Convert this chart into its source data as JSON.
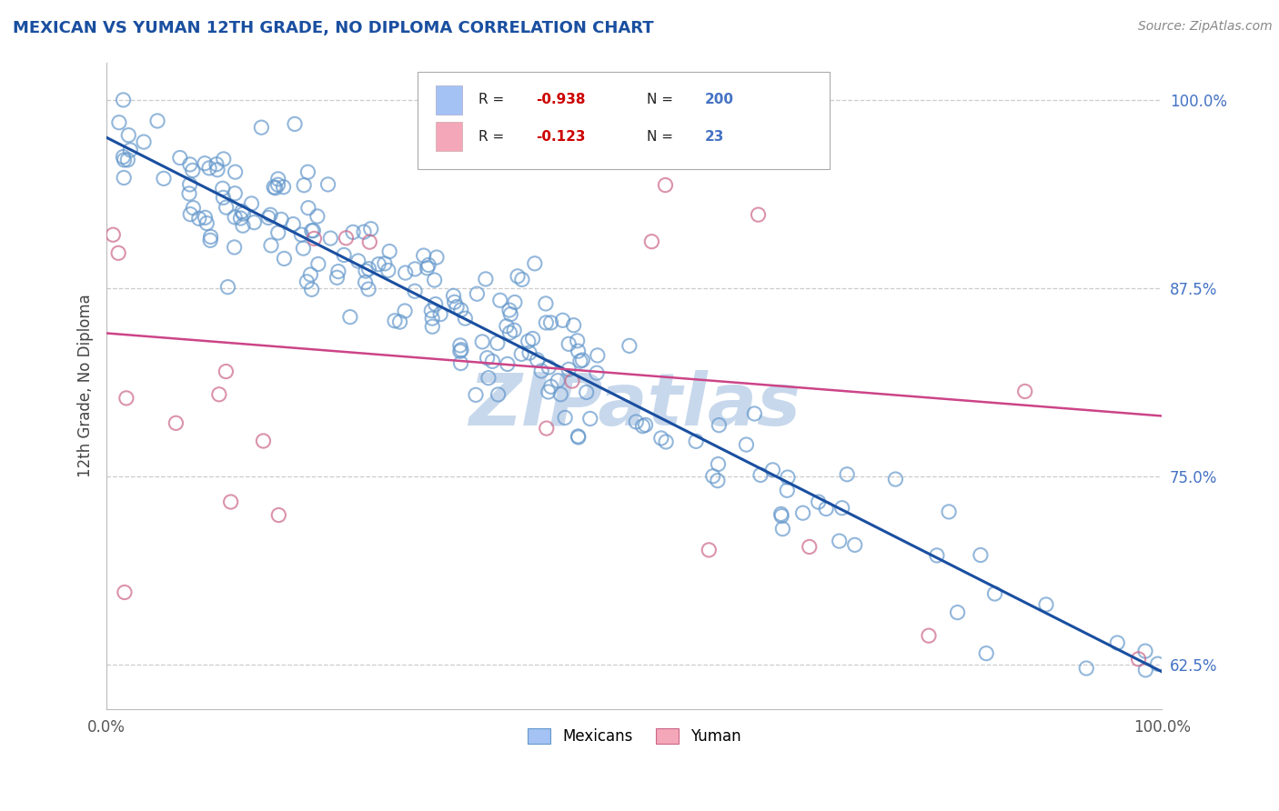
{
  "title": "MEXICAN VS YUMAN 12TH GRADE, NO DIPLOMA CORRELATION CHART",
  "source_text": "Source: ZipAtlas.com",
  "ylabel": "12th Grade, No Diploma",
  "xlim": [
    0,
    1
  ],
  "ylim": [
    0.595,
    1.025
  ],
  "yticks": [
    0.625,
    0.75,
    0.875,
    1.0
  ],
  "ytick_labels": [
    "62.5%",
    "75.0%",
    "87.5%",
    "100.0%"
  ],
  "xtick_labels": [
    "0.0%",
    "",
    "100.0%"
  ],
  "blue_color": "#a4c2f4",
  "blue_edge_color": "#6699cc",
  "pink_color": "#f4a7b9",
  "pink_edge_color": "#cc6688",
  "blue_line_color": "#1a4fa0",
  "pink_line_color": "#cc4488",
  "bg_color": "#ffffff",
  "watermark": "ZIPatlas",
  "watermark_color": "#c8d8ec",
  "scatter_alpha": 0.7,
  "scatter_size": 120,
  "blue_slope": -0.355,
  "blue_intercept": 0.975,
  "pink_slope": -0.055,
  "pink_intercept": 0.845,
  "legend_r1": "-0.938",
  "legend_n1": "200",
  "legend_r2": "-0.123",
  "legend_n2": "23"
}
